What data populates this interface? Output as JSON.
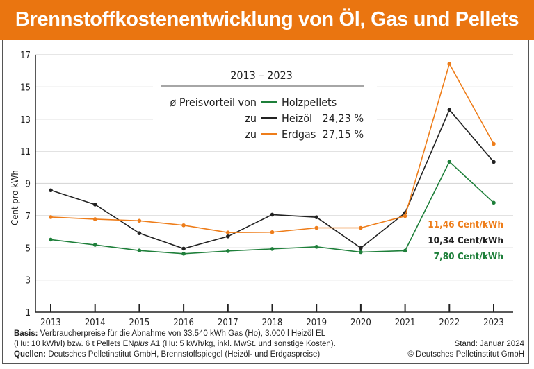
{
  "title": "Brennstoffkostenentwicklung von Öl, Gas und Pellets",
  "chart_data": {
    "type": "line",
    "ylabel": "Cent pro kWh",
    "xlabel": "",
    "ylim": [
      1,
      17
    ],
    "yticks": [
      1,
      3,
      5,
      7,
      9,
      11,
      13,
      15,
      17
    ],
    "grid": true,
    "categories": [
      "2013",
      "2014",
      "2015",
      "2016",
      "2017",
      "2018",
      "2019",
      "2020",
      "2021",
      "2022",
      "2023"
    ],
    "series": [
      {
        "name": "Holzpellets",
        "color": "#1e7f3a",
        "values": [
          5.51,
          5.18,
          4.83,
          4.63,
          4.8,
          4.93,
          5.06,
          4.73,
          4.82,
          10.35,
          7.8
        ]
      },
      {
        "name": "Heizöl",
        "color": "#222222",
        "values": [
          8.58,
          7.69,
          5.91,
          4.95,
          5.71,
          7.06,
          6.9,
          4.99,
          7.17,
          13.58,
          10.34
        ]
      },
      {
        "name": "Erdgas",
        "color": "#ee7d1a",
        "values": [
          6.91,
          6.78,
          6.68,
          6.4,
          5.95,
          5.97,
          6.24,
          6.24,
          6.97,
          16.44,
          11.46
        ]
      }
    ],
    "legend": {
      "period": "2013 – 2023",
      "intro": "ø Preisvorteil von",
      "zu": "zu",
      "items": [
        {
          "label": "Holzpellets",
          "value": ""
        },
        {
          "label": "Heizöl",
          "value": "24,23 %"
        },
        {
          "label": "Erdgas",
          "value": "27,15 %"
        }
      ],
      "placement": "top-center"
    },
    "annotations": [
      "11,46 Cent/kWh",
      "10,34 Cent/kWh",
      "7,80 Cent/kWh"
    ]
  },
  "footer": {
    "basis_label": "Basis:",
    "basis_text_1": "Verbraucherpreise für die Abnahme von 33.540 kWh Gas (Ho), 3.000 l Heizöl EL",
    "basis_text_2a": "(Hu: 10 kWh/l) bzw. 6 t Pellets EN",
    "basis_text_2b": "plus",
    "basis_text_2c": " A1 (Hu: 5 kWh/kg, inkl. MwSt. und sonstige Kosten).",
    "quellen_label": "Quellen:",
    "quellen_text": "Deutsches Pelletinstitut GmbH, Brennstoffspiegel (Heizöl- und Erdgaspreise)",
    "stand": "Stand: Januar 2024",
    "copyright": "© Deutsches Pelletinstitut GmbH"
  }
}
